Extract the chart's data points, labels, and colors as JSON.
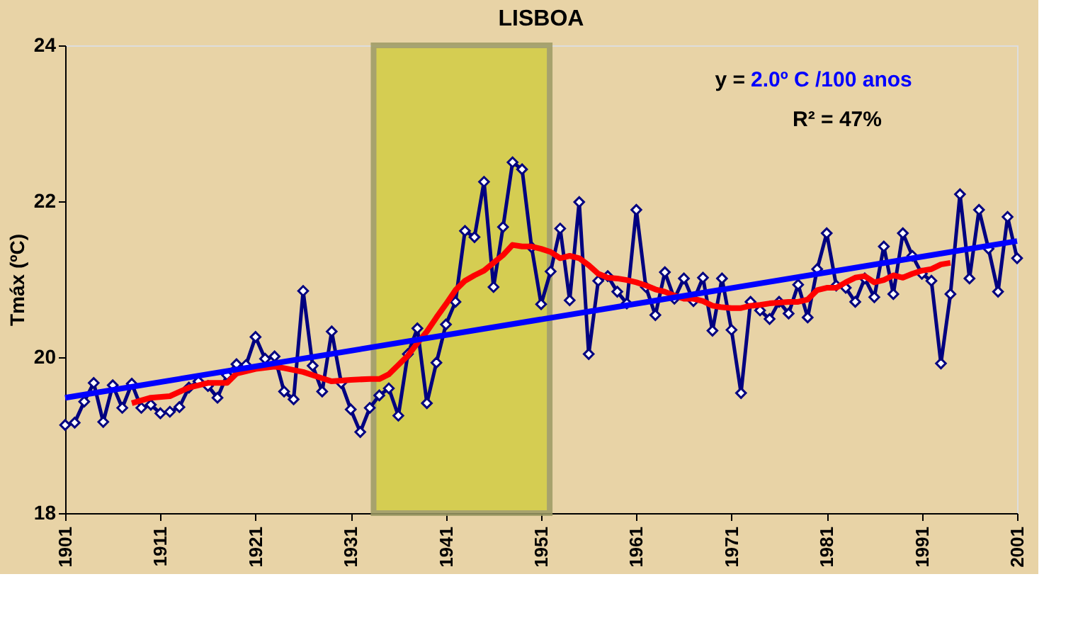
{
  "chart_data": {
    "type": "line",
    "title": "LISBOA",
    "ylabel": "Tmáx (ºC)",
    "x": [
      1901,
      1902,
      1903,
      1904,
      1905,
      1906,
      1907,
      1908,
      1909,
      1910,
      1911,
      1912,
      1913,
      1914,
      1915,
      1916,
      1917,
      1918,
      1919,
      1920,
      1921,
      1922,
      1923,
      1924,
      1925,
      1926,
      1927,
      1928,
      1929,
      1930,
      1931,
      1932,
      1933,
      1934,
      1935,
      1936,
      1937,
      1938,
      1939,
      1940,
      1941,
      1942,
      1943,
      1944,
      1945,
      1946,
      1947,
      1948,
      1949,
      1950,
      1951,
      1952,
      1953,
      1954,
      1955,
      1956,
      1957,
      1958,
      1959,
      1960,
      1961,
      1962,
      1963,
      1964,
      1965,
      1966,
      1967,
      1968,
      1969,
      1970,
      1971,
      1972,
      1973,
      1974,
      1975,
      1976,
      1977,
      1978,
      1979,
      1980,
      1981,
      1982,
      1983,
      1984,
      1985,
      1986,
      1987,
      1988,
      1989,
      1990,
      1991,
      1992,
      1993,
      1994,
      1995,
      1996,
      1997,
      1998,
      1999,
      2000,
      2001
    ],
    "series": [
      {
        "color": "#000080",
        "marker": "diamond",
        "values": [
          19.13,
          19.16,
          19.43,
          19.67,
          19.17,
          19.64,
          19.35,
          19.66,
          19.35,
          19.39,
          19.28,
          19.3,
          19.36,
          19.61,
          19.69,
          19.63,
          19.48,
          19.77,
          19.91,
          19.9,
          20.26,
          19.98,
          20.01,
          19.56,
          19.46,
          20.85,
          19.89,
          19.56,
          20.33,
          19.67,
          19.33,
          19.04,
          19.35,
          19.51,
          19.6,
          19.25,
          20.04,
          20.37,
          19.41,
          19.93,
          20.42,
          20.71,
          21.62,
          21.54,
          22.25,
          20.9,
          21.67,
          22.5,
          22.41,
          21.41,
          20.68,
          21.1,
          21.65,
          20.73,
          21.99,
          20.04,
          20.98,
          21.04,
          20.84,
          20.69,
          21.89,
          20.9,
          20.54,
          21.09,
          20.75,
          21.01,
          20.72,
          21.02,
          20.34,
          21.01,
          20.35,
          19.54,
          20.71,
          20.6,
          20.49,
          20.71,
          20.56,
          20.93,
          20.51,
          21.13,
          21.59,
          20.92,
          20.89,
          20.71,
          21.01,
          20.77,
          21.42,
          20.81,
          21.59,
          21.3,
          21.07,
          20.98,
          19.92,
          20.81,
          22.09,
          21.01,
          21.89,
          21.39,
          20.84,
          21.8,
          21.27
        ]
      },
      {
        "color": "#ff0000",
        "marker": "none",
        "x": [
          1908,
          1910,
          1912,
          1914,
          1916,
          1918,
          1919,
          1921,
          1923,
          1924,
          1926,
          1928,
          1929,
          1931,
          1933,
          1934,
          1935,
          1936,
          1937,
          1938,
          1939,
          1940,
          1941,
          1942,
          1943,
          1944,
          1945,
          1946,
          1947,
          1948,
          1949,
          1950,
          1951,
          1952,
          1953,
          1954,
          1955,
          1956,
          1957,
          1958,
          1959,
          1960,
          1961,
          1962,
          1963,
          1964,
          1965,
          1966,
          1967,
          1968,
          1969,
          1970,
          1971,
          1972,
          1973,
          1974,
          1975,
          1976,
          1977,
          1978,
          1979,
          1980,
          1981,
          1982,
          1983,
          1984,
          1985,
          1986,
          1987,
          1988,
          1989,
          1990,
          1991,
          1992,
          1993,
          1994
        ],
        "values": [
          19.41,
          19.48,
          19.5,
          19.61,
          19.67,
          19.67,
          19.79,
          19.85,
          19.88,
          19.86,
          19.81,
          19.73,
          19.69,
          19.71,
          19.72,
          19.72,
          19.78,
          19.9,
          20.02,
          20.18,
          20.33,
          20.51,
          20.68,
          20.86,
          20.98,
          21.05,
          21.11,
          21.21,
          21.31,
          21.44,
          21.42,
          21.42,
          21.39,
          21.35,
          21.27,
          21.3,
          21.27,
          21.18,
          21.07,
          21.02,
          21.01,
          20.99,
          20.96,
          20.92,
          20.87,
          20.84,
          20.79,
          20.75,
          20.75,
          20.72,
          20.66,
          20.64,
          20.63,
          20.63,
          20.66,
          20.67,
          20.69,
          20.7,
          20.71,
          20.71,
          20.74,
          20.86,
          20.89,
          20.89,
          20.96,
          21.02,
          21.04,
          20.96,
          20.99,
          21.05,
          21.02,
          21.07,
          21.11,
          21.13,
          21.19,
          21.21
        ]
      },
      {
        "color": "#0000ff",
        "marker": "none",
        "x": [
          1901,
          2001
        ],
        "values": [
          19.48,
          21.49
        ]
      }
    ],
    "xlim": [
      1901,
      2001
    ],
    "xticks": [
      1901,
      1911,
      1921,
      1931,
      1941,
      1951,
      1961,
      1971,
      1981,
      1991,
      2001
    ],
    "ylim": [
      18,
      24
    ],
    "yticks": [
      18,
      20,
      22,
      24
    ],
    "grid": false,
    "bands": [
      {
        "axis": "x",
        "from": 1933.4,
        "to": 1951.9,
        "color": "#d2cc44"
      }
    ],
    "annotations": [
      "y =",
      "2.0º C /100 anos",
      "R² = 47%"
    ]
  }
}
